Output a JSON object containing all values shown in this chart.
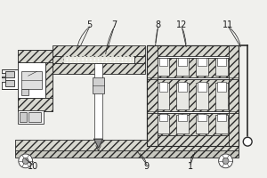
{
  "bg_color": "#f0f0ed",
  "line_color": "#2a2a2a",
  "hatch_fc": "#d8d8d0",
  "label_color": "#1a1a1a",
  "figsize": [
    3.0,
    2.0
  ],
  "dpi": 100
}
